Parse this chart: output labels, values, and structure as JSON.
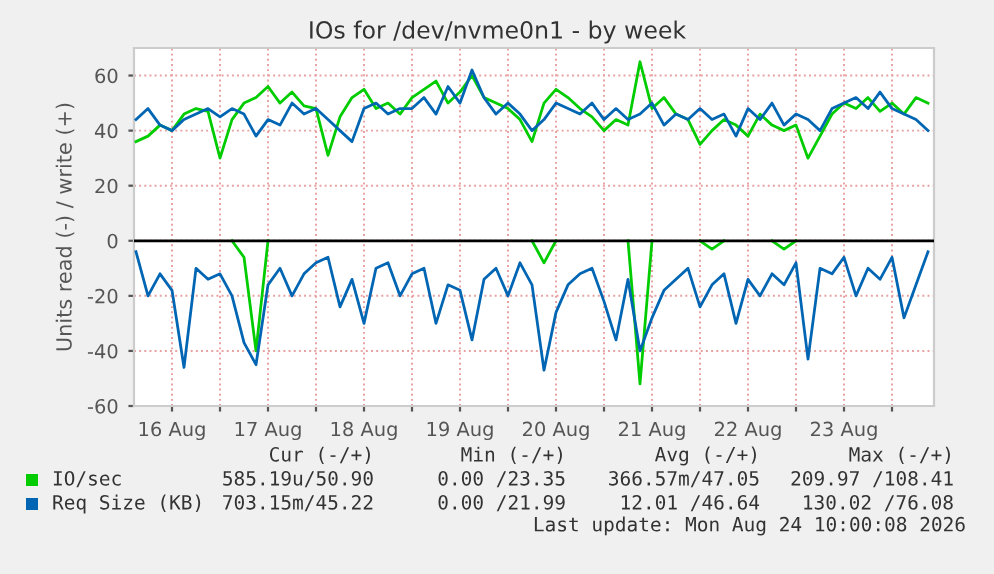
{
  "chart_data": {
    "type": "line",
    "title": "IOs for /dev/nvme0n1 - by week",
    "ylabel": "Units read (-) / write (+)",
    "x": [
      "2026-08-16T03:00",
      "2026-08-16T06:00",
      "2026-08-16T09:00",
      "2026-08-16T12:00",
      "2026-08-16T15:00",
      "2026-08-16T18:00",
      "2026-08-16T21:00",
      "2026-08-17T00:00",
      "2026-08-17T03:00",
      "2026-08-17T06:00",
      "2026-08-17T09:00",
      "2026-08-17T12:00",
      "2026-08-17T15:00",
      "2026-08-17T18:00",
      "2026-08-17T21:00",
      "2026-08-18T00:00",
      "2026-08-18T03:00",
      "2026-08-18T06:00",
      "2026-08-18T09:00",
      "2026-08-18T12:00",
      "2026-08-18T15:00",
      "2026-08-18T18:00",
      "2026-08-18T21:00",
      "2026-08-19T00:00",
      "2026-08-19T03:00",
      "2026-08-19T06:00",
      "2026-08-19T09:00",
      "2026-08-19T12:00",
      "2026-08-19T15:00",
      "2026-08-19T18:00",
      "2026-08-19T21:00",
      "2026-08-20T00:00",
      "2026-08-20T03:00",
      "2026-08-20T06:00",
      "2026-08-20T09:00",
      "2026-08-20T12:00",
      "2026-08-20T15:00",
      "2026-08-20T18:00",
      "2026-08-20T21:00",
      "2026-08-21T00:00",
      "2026-08-21T03:00",
      "2026-08-21T06:00",
      "2026-08-21T09:00",
      "2026-08-21T12:00",
      "2026-08-21T15:00",
      "2026-08-21T18:00",
      "2026-08-21T21:00",
      "2026-08-22T00:00",
      "2026-08-22T03:00",
      "2026-08-22T06:00",
      "2026-08-22T09:00",
      "2026-08-22T12:00",
      "2026-08-22T15:00",
      "2026-08-22T18:00",
      "2026-08-22T21:00",
      "2026-08-23T00:00",
      "2026-08-23T03:00",
      "2026-08-23T06:00",
      "2026-08-23T09:00",
      "2026-08-23T12:00",
      "2026-08-23T15:00",
      "2026-08-23T18:00",
      "2026-08-23T21:00",
      "2026-08-24T00:00",
      "2026-08-24T03:00",
      "2026-08-24T06:00",
      "2026-08-24T09:00"
    ],
    "series": [
      {
        "name": "IO/sec",
        "color": "#00cc00",
        "values": [
          36,
          38,
          42,
          40,
          46,
          48,
          47,
          30,
          44,
          50,
          52,
          56,
          50,
          54,
          49,
          48,
          31,
          45,
          52,
          55,
          48,
          50,
          46,
          52,
          55,
          58,
          50,
          54,
          60,
          52,
          50,
          48,
          44,
          36,
          50,
          55,
          52,
          48,
          45,
          40,
          44,
          42,
          65,
          48,
          52,
          46,
          44,
          35,
          40,
          44,
          42,
          38,
          46,
          42,
          40,
          42,
          30,
          38,
          46,
          50,
          48,
          52,
          47,
          50,
          46,
          52,
          50
        ]
      },
      {
        "color": "#00cc00",
        "values": [
          null,
          null,
          null,
          null,
          null,
          null,
          null,
          null,
          0,
          -6,
          -40,
          0,
          null,
          null,
          null,
          null,
          null,
          null,
          null,
          null,
          null,
          null,
          null,
          null,
          null,
          null,
          null,
          null,
          null,
          null,
          null,
          null,
          null,
          0,
          -8,
          0,
          null,
          null,
          null,
          null,
          null,
          0,
          -52,
          0,
          null,
          null,
          null,
          0,
          -3,
          0,
          null,
          null,
          null,
          0,
          -3,
          0,
          null,
          null,
          null,
          null,
          null,
          null,
          null,
          null,
          null,
          null,
          null
        ]
      },
      {
        "name": "Req Size (KB)",
        "color": "#0066b3",
        "values": [
          44,
          48,
          42,
          40,
          44,
          46,
          48,
          45,
          48,
          46,
          38,
          44,
          42,
          50,
          46,
          48,
          44,
          40,
          36,
          48,
          50,
          46,
          48,
          48,
          52,
          46,
          56,
          50,
          62,
          52,
          46,
          50,
          46,
          40,
          44,
          50,
          48,
          46,
          50,
          44,
          48,
          44,
          46,
          50,
          42,
          46,
          44,
          48,
          44,
          46,
          38,
          48,
          44,
          50,
          42,
          46,
          44,
          40,
          48,
          50,
          52,
          48,
          54,
          48,
          46,
          44,
          40
        ]
      },
      {
        "color": "#0066b3",
        "values": [
          -4,
          -20,
          -12,
          -18,
          -46,
          -10,
          -14,
          -12,
          -20,
          -37,
          -45,
          -16,
          -10,
          -20,
          -12,
          -8,
          -6,
          -24,
          -14,
          -30,
          -10,
          -8,
          -20,
          -12,
          -10,
          -30,
          -16,
          -18,
          -36,
          -14,
          -10,
          -20,
          -8,
          -16,
          -47,
          -26,
          -16,
          -12,
          -10,
          -22,
          -36,
          -14,
          -40,
          -28,
          -18,
          -14,
          -10,
          -24,
          -16,
          -12,
          -30,
          -14,
          -20,
          -12,
          -16,
          -8,
          -43,
          -10,
          -12,
          -6,
          -20,
          -10,
          -14,
          -6,
          -28,
          -16,
          -4
        ]
      }
    ],
    "xlim": [
      "2026-08-16T02:30",
      "2026-08-24T10:30"
    ],
    "xticks": [
      {
        "value": "2026-08-16T12:00",
        "label": "16 Aug"
      },
      {
        "value": "2026-08-17T00:00",
        "label": null
      },
      {
        "value": "2026-08-17T12:00",
        "label": "17 Aug"
      },
      {
        "value": "2026-08-18T00:00",
        "label": null
      },
      {
        "value": "2026-08-18T12:00",
        "label": "18 Aug"
      },
      {
        "value": "2026-08-19T00:00",
        "label": null
      },
      {
        "value": "2026-08-19T12:00",
        "label": "19 Aug"
      },
      {
        "value": "2026-08-20T00:00",
        "label": null
      },
      {
        "value": "2026-08-20T12:00",
        "label": "20 Aug"
      },
      {
        "value": "2026-08-21T00:00",
        "label": null
      },
      {
        "value": "2026-08-21T12:00",
        "label": "21 Aug"
      },
      {
        "value": "2026-08-22T00:00",
        "label": null
      },
      {
        "value": "2026-08-22T12:00",
        "label": "22 Aug"
      },
      {
        "value": "2026-08-23T00:00",
        "label": null
      },
      {
        "value": "2026-08-23T12:00",
        "label": "23 Aug"
      },
      {
        "value": "2026-08-24T00:00",
        "label": null
      }
    ],
    "ylim": [
      -60,
      70
    ],
    "yticks": [
      -60,
      -40,
      -20,
      0,
      20,
      40,
      60
    ],
    "ref_lines": [
      {
        "axis": "y",
        "value": 0,
        "color": "#000000"
      }
    ],
    "grid": true,
    "legend": "bottom left",
    "annotations": [
      "Cur (-/+)",
      "Min (-/+)",
      "Avg (-/+)",
      "Max (-/+)",
      "585.19u/50.90",
      "0.00 /23.35",
      "366.57m/47.05",
      "209.97 /108.41",
      "703.15m/45.22",
      "0.00 /21.99",
      "12.01 /46.64",
      "130.02 /76.08",
      "Last update: Mon Aug 24 10:00:08 2026"
    ]
  }
}
